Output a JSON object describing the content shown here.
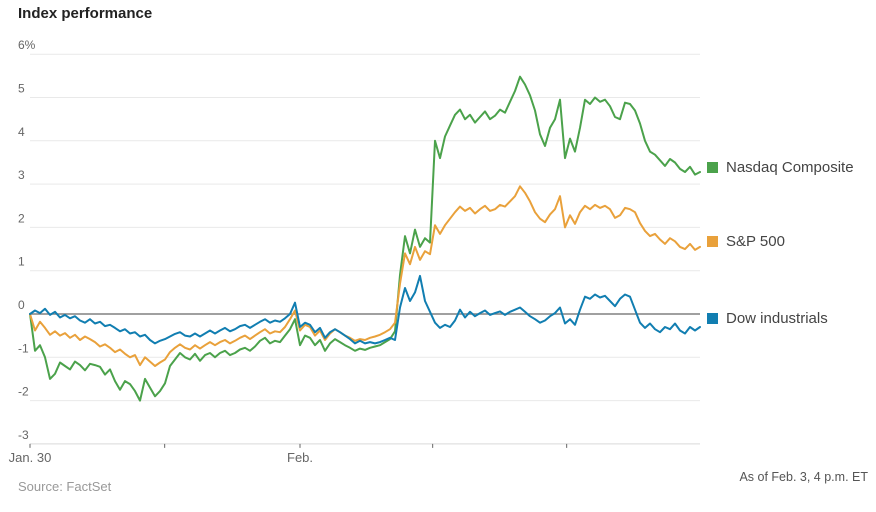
{
  "header": {
    "title": "Index performance"
  },
  "footer": {
    "source": "Source: FactSet",
    "as_of": "As of Feb. 3, 4 p.m. ET"
  },
  "colors": {
    "nasdaq": "#4ba24b",
    "sp500": "#e9a13b",
    "dow": "#117eb1",
    "grid": "#e9e9e9",
    "zero_line": "#808080",
    "axis_line": "#d9d9d9",
    "tick_mark": "#666666",
    "axis_text": "#666666"
  },
  "chart_data": {
    "type": "line",
    "title": "Index performance",
    "xlabel": "",
    "ylabel": "",
    "ylim": [
      -3,
      6
    ],
    "grid": true,
    "zero_line": true,
    "legend_position": "right",
    "y_ticks": [
      {
        "value": 6,
        "label": "6%"
      },
      {
        "value": 5,
        "label": "5"
      },
      {
        "value": 4,
        "label": "4"
      },
      {
        "value": 3,
        "label": "3"
      },
      {
        "value": 2,
        "label": "2"
      },
      {
        "value": 1,
        "label": "1"
      },
      {
        "value": 0,
        "label": "0"
      },
      {
        "value": -1,
        "label": "-1"
      },
      {
        "value": -2,
        "label": "-2"
      },
      {
        "value": -3,
        "label": "-3"
      }
    ],
    "x_ticks": [
      {
        "pos": 0.0,
        "label": "Jan. 30"
      },
      {
        "pos": 0.201,
        "label": ""
      },
      {
        "pos": 0.403,
        "label": "Feb."
      },
      {
        "pos": 0.601,
        "label": ""
      },
      {
        "pos": 0.801,
        "label": ""
      }
    ],
    "series": [
      {
        "name": "Nasdaq Composite",
        "color": "#4ba24b",
        "values": [
          0,
          -0.85,
          -0.72,
          -1.0,
          -1.5,
          -1.38,
          -1.12,
          -1.2,
          -1.28,
          -1.1,
          -1.18,
          -1.3,
          -1.15,
          -1.18,
          -1.22,
          -1.4,
          -1.28,
          -1.55,
          -1.75,
          -1.55,
          -1.62,
          -1.78,
          -2.0,
          -1.5,
          -1.7,
          -1.9,
          -1.78,
          -1.6,
          -1.2,
          -1.05,
          -0.9,
          -1.0,
          -1.05,
          -0.92,
          -1.08,
          -0.95,
          -0.9,
          -1.0,
          -0.9,
          -0.85,
          -0.95,
          -0.9,
          -0.82,
          -0.78,
          -0.85,
          -0.75,
          -0.62,
          -0.55,
          -0.68,
          -0.62,
          -0.65,
          -0.5,
          -0.35,
          -0.12,
          -0.72,
          -0.5,
          -0.55,
          -0.72,
          -0.6,
          -0.85,
          -0.68,
          -0.58,
          -0.65,
          -0.72,
          -0.78,
          -0.85,
          -0.8,
          -0.83,
          -0.78,
          -0.75,
          -0.72,
          -0.65,
          -0.58,
          -0.4,
          0.9,
          1.8,
          1.4,
          1.95,
          1.55,
          1.75,
          1.65,
          4.0,
          3.6,
          4.1,
          4.35,
          4.6,
          4.72,
          4.5,
          4.6,
          4.42,
          4.55,
          4.68,
          4.5,
          4.58,
          4.72,
          4.65,
          4.9,
          5.15,
          5.48,
          5.3,
          5.05,
          4.7,
          4.15,
          3.88,
          4.3,
          4.5,
          4.95,
          3.6,
          4.05,
          3.75,
          4.3,
          4.95,
          4.85,
          5.0,
          4.9,
          4.95,
          4.8,
          4.55,
          4.5,
          4.88,
          4.85,
          4.7,
          4.4,
          4.0,
          3.75,
          3.68,
          3.55,
          3.42,
          3.58,
          3.5,
          3.35,
          3.28,
          3.4,
          3.22,
          3.28
        ]
      },
      {
        "name": "S&P 500",
        "color": "#e9a13b",
        "values": [
          0,
          -0.38,
          -0.18,
          -0.32,
          -0.48,
          -0.4,
          -0.5,
          -0.44,
          -0.55,
          -0.48,
          -0.6,
          -0.52,
          -0.58,
          -0.65,
          -0.75,
          -0.7,
          -0.78,
          -0.88,
          -0.82,
          -0.92,
          -1.0,
          -0.95,
          -1.18,
          -1.0,
          -1.1,
          -1.2,
          -1.12,
          -1.05,
          -0.88,
          -0.78,
          -0.7,
          -0.78,
          -0.82,
          -0.72,
          -0.8,
          -0.72,
          -0.65,
          -0.72,
          -0.65,
          -0.6,
          -0.68,
          -0.62,
          -0.55,
          -0.5,
          -0.58,
          -0.5,
          -0.42,
          -0.35,
          -0.45,
          -0.4,
          -0.42,
          -0.3,
          -0.12,
          0.08,
          -0.38,
          -0.25,
          -0.3,
          -0.5,
          -0.38,
          -0.6,
          -0.45,
          -0.35,
          -0.42,
          -0.5,
          -0.55,
          -0.62,
          -0.58,
          -0.6,
          -0.55,
          -0.52,
          -0.48,
          -0.42,
          -0.35,
          -0.2,
          0.7,
          1.4,
          1.15,
          1.55,
          1.25,
          1.45,
          1.38,
          2.05,
          1.85,
          2.05,
          2.2,
          2.35,
          2.48,
          2.38,
          2.45,
          2.32,
          2.42,
          2.5,
          2.38,
          2.42,
          2.52,
          2.48,
          2.6,
          2.72,
          2.95,
          2.8,
          2.6,
          2.35,
          2.2,
          2.12,
          2.3,
          2.42,
          2.72,
          2.0,
          2.28,
          2.08,
          2.35,
          2.5,
          2.42,
          2.52,
          2.45,
          2.5,
          2.42,
          2.22,
          2.28,
          2.45,
          2.42,
          2.35,
          2.1,
          1.92,
          1.8,
          1.85,
          1.72,
          1.62,
          1.75,
          1.68,
          1.55,
          1.5,
          1.62,
          1.48,
          1.55
        ]
      },
      {
        "name": "Dow industrials",
        "color": "#117eb1",
        "values": [
          0,
          0.08,
          0.02,
          0.12,
          -0.02,
          0.05,
          -0.08,
          -0.02,
          -0.1,
          -0.05,
          -0.15,
          -0.2,
          -0.12,
          -0.22,
          -0.18,
          -0.28,
          -0.25,
          -0.32,
          -0.4,
          -0.35,
          -0.45,
          -0.42,
          -0.52,
          -0.48,
          -0.6,
          -0.68,
          -0.62,
          -0.58,
          -0.52,
          -0.46,
          -0.42,
          -0.5,
          -0.52,
          -0.45,
          -0.52,
          -0.45,
          -0.38,
          -0.45,
          -0.38,
          -0.32,
          -0.4,
          -0.35,
          -0.28,
          -0.25,
          -0.32,
          -0.25,
          -0.18,
          -0.12,
          -0.2,
          -0.15,
          -0.18,
          -0.1,
          0.0,
          0.26,
          -0.3,
          -0.2,
          -0.25,
          -0.42,
          -0.32,
          -0.55,
          -0.42,
          -0.35,
          -0.42,
          -0.5,
          -0.58,
          -0.68,
          -0.62,
          -0.68,
          -0.65,
          -0.68,
          -0.65,
          -0.6,
          -0.55,
          -0.6,
          0.15,
          0.6,
          0.3,
          0.5,
          0.88,
          0.3,
          0.05,
          -0.2,
          -0.32,
          -0.25,
          -0.3,
          -0.15,
          0.1,
          -0.08,
          0.05,
          -0.05,
          0.02,
          0.08,
          -0.02,
          0.02,
          0.06,
          -0.02,
          0.05,
          0.1,
          0.15,
          0.05,
          -0.05,
          -0.12,
          -0.2,
          -0.15,
          -0.05,
          0.02,
          0.15,
          -0.22,
          -0.12,
          -0.25,
          0.1,
          0.4,
          0.35,
          0.45,
          0.38,
          0.42,
          0.3,
          0.18,
          0.35,
          0.45,
          0.4,
          0.1,
          -0.2,
          -0.32,
          -0.22,
          -0.35,
          -0.42,
          -0.3,
          -0.35,
          -0.22,
          -0.38,
          -0.45,
          -0.3,
          -0.38,
          -0.3
        ]
      }
    ]
  },
  "legend": {
    "items": [
      {
        "label": "Nasdaq Composite"
      },
      {
        "label": "S&P 500"
      },
      {
        "label": "Dow industrials"
      }
    ]
  }
}
